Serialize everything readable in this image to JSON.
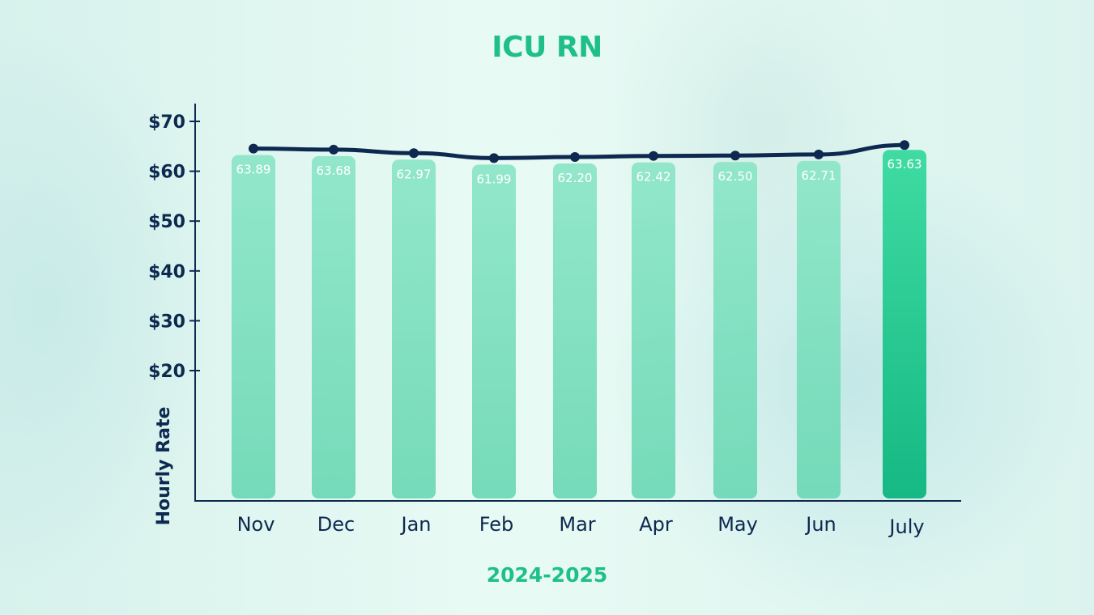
{
  "chart_data": {
    "type": "bar",
    "title": "ICU RN",
    "xlabel": "2024-2025",
    "ylabel": "Hourly Rate",
    "categories": [
      "Nov",
      "Dec",
      "Jan",
      "Feb",
      "Mar",
      "Apr",
      "May",
      "Jun",
      "July"
    ],
    "values": [
      63.89,
      63.68,
      62.97,
      61.99,
      62.2,
      62.42,
      62.5,
      62.71,
      63.63
    ],
    "data_labels": [
      "63.89",
      "63.68",
      "62.97",
      "61.99",
      "62.20",
      "62.42",
      "62.50",
      "62.71",
      "63.63"
    ],
    "line_overlay": true,
    "ylim": [
      0,
      70
    ],
    "yticks": [
      20,
      30,
      40,
      50,
      60,
      70
    ],
    "ytick_labels": [
      "$20",
      "$30",
      "$40",
      "$50",
      "$60",
      "$70"
    ],
    "grid": false,
    "legend": "none",
    "colors": {
      "bar": "#86e3c3",
      "bar_highlight": "#1fbf88",
      "line": "#0d2950",
      "title": "#1fbf88",
      "axis_text": "#0d2950"
    }
  }
}
